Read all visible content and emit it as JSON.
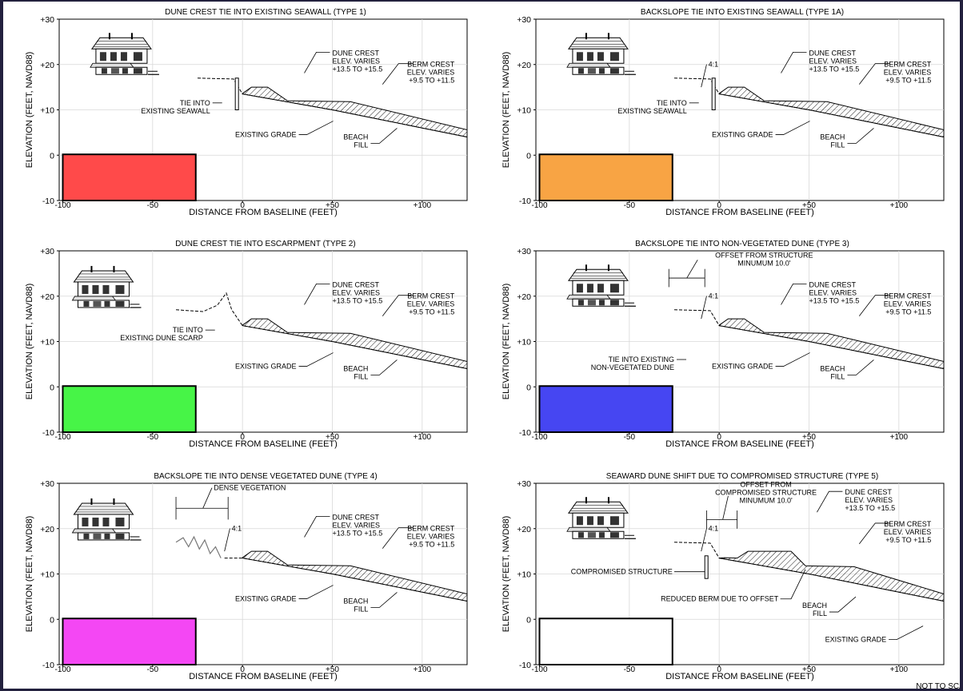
{
  "axis": {
    "ylabel": "ELEVATION (FEET, NAVD88)",
    "xlabel": "DISTANCE FROM BASELINE (FEET)",
    "yticks": [
      "+30",
      "+20",
      "+10",
      "0",
      "-10"
    ],
    "xticks": [
      "-100",
      "-50",
      "0",
      "+50",
      "+100"
    ],
    "xrange": [
      -102,
      125
    ],
    "yrange": [
      -10,
      30
    ]
  },
  "scale_note": "NOT TO SCALE",
  "panels": [
    {
      "title": "DUNE CREST TIE INTO EXISTING SEAWALL (TYPE 1)",
      "swatch": "#ff4a4a",
      "tie": "seawall",
      "labels": {
        "dune_crest": [
          "DUNE CREST",
          "ELEV. VARIES",
          "+13.5 TO +15.5"
        ],
        "berm_crest": [
          "BERM CREST",
          "ELEV. VARIES",
          "+9.5 TO +11.5"
        ],
        "tie": [
          "TIE INTO",
          "EXISTING SEAWALL"
        ],
        "existing_grade": "EXISTING GRADE",
        "beach_fill": [
          "BEACH",
          "FILL"
        ]
      }
    },
    {
      "title": "BACKSLOPE TIE INTO EXISTING SEAWALL  (TYPE 1A)",
      "swatch": "#f8a444",
      "tie": "seawall",
      "labels": {
        "slope": "4:1",
        "dune_crest": [
          "DUNE CREST",
          "ELEV. VARIES",
          "+13.5 TO +15.5"
        ],
        "berm_crest": [
          "BERM CREST",
          "ELEV. VARIES",
          "+9.5 TO +11.5"
        ],
        "tie": [
          "TIE INTO",
          "EXISTING SEAWALL"
        ],
        "existing_grade": "EXISTING GRADE",
        "beach_fill": [
          "BEACH",
          "FILL"
        ]
      }
    },
    {
      "title": "DUNE CREST TIE INTO ESCARPMENT (TYPE 2)",
      "swatch": "#47f447",
      "tie": "scarp",
      "labels": {
        "dune_crest": [
          "DUNE CREST",
          "ELEV. VARIES",
          "+13.5 TO +15.5"
        ],
        "berm_crest": [
          "BERM CREST",
          "ELEV. VARIES",
          "+9.5 TO +11.5"
        ],
        "tie": [
          "TIE INTO",
          "EXISTING DUNE SCARP"
        ],
        "existing_grade": "EXISTING GRADE",
        "beach_fill": [
          "BEACH",
          "FILL"
        ]
      }
    },
    {
      "title": "BACKSLOPE TIE INTO NON-VEGETATED DUNE (TYPE 3)",
      "swatch": "#4646f2",
      "tie": "dune",
      "labels": {
        "slope": "4:1",
        "offset": [
          "OFFSET FROM STRUCTURE",
          "MINUMUM 10.0'"
        ],
        "dune_crest": [
          "DUNE CREST",
          "ELEV. VARIES",
          "+13.5 TO +15.5"
        ],
        "berm_crest": [
          "BERM CREST",
          "ELEV. VARIES",
          "+9.5 TO +11.5"
        ],
        "tie": [
          "TIE INTO EXISTING",
          "NON-VEGETATED DUNE"
        ],
        "existing_grade": "EXISTING GRADE",
        "beach_fill": [
          "BEACH",
          "FILL"
        ]
      }
    },
    {
      "title": "BACKSLOPE TIE INTO DENSE VEGETATED DUNE (TYPE 4)",
      "swatch": "#f447f4",
      "tie": "vegetation",
      "labels": {
        "slope": "4:1",
        "dense_vegetation": "DENSE VEGETATION",
        "dune_crest": [
          "DUNE CREST",
          "ELEV. VARIES",
          "+13.5 TO +15.5"
        ],
        "berm_crest": [
          "BERM CREST",
          "ELEV. VARIES",
          "+9.5 TO +11.5"
        ],
        "existing_grade": "EXISTING GRADE",
        "beach_fill": [
          "BEACH",
          "FILL"
        ]
      }
    },
    {
      "title": "SEAWARD DUNE SHIFT DUE TO COMPROMISED STRUCTURE (TYPE 5)",
      "swatch": "#ffffff",
      "tie": "compromised",
      "labels": {
        "slope": "4:1",
        "offset": [
          "OFFSET FROM",
          "COMPROMISED STRUCTURE",
          "MINUMUM 10.0'"
        ],
        "dune_crest": [
          "DUNE CREST",
          "ELEV. VARIES",
          "+13.5 TO +15.5"
        ],
        "berm_crest": [
          "BERM CREST",
          "ELEV. VARIES",
          "+9.5 TO +11.5"
        ],
        "compromised": "COMPROMISED STRUCTURE",
        "reduced_berm": "REDUCED BERM DUE TO OFFSET",
        "existing_grade": "EXISTING GRADE",
        "beach_fill": [
          "BEACH",
          "FILL"
        ]
      }
    }
  ]
}
